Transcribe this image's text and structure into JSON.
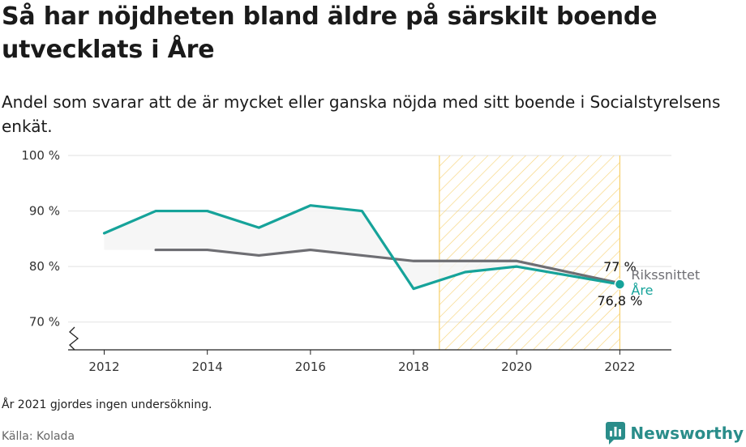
{
  "title": "Så har nöjdheten bland äldre på särskilt boende utvecklats i Åre",
  "subtitle": "Andel som svarar att de är mycket eller ganska nöjda med sitt boende i Socialstyrelsens enkät.",
  "footnote": "År 2021 gjordes ingen undersökning.",
  "source": "Källa: Kolada",
  "brand": {
    "name": "Newsworthy",
    "icon": "bar-chart-bubble-icon",
    "color": "#2a8d8a"
  },
  "chart_data": {
    "type": "line",
    "ylim": [
      65,
      100
    ],
    "xlim": [
      2011.3,
      2023.0
    ],
    "y_ticks": [
      {
        "value": 70,
        "label": "70 %"
      },
      {
        "value": 80,
        "label": "80 %"
      },
      {
        "value": 90,
        "label": "90 %"
      },
      {
        "value": 100,
        "label": "100 %"
      }
    ],
    "x_ticks": [
      {
        "value": 2012,
        "label": "2012"
      },
      {
        "value": 2014,
        "label": "2014"
      },
      {
        "value": 2016,
        "label": "2016"
      },
      {
        "value": 2018,
        "label": "2018"
      },
      {
        "value": 2020,
        "label": "2020"
      },
      {
        "value": 2022,
        "label": "2022"
      }
    ],
    "grid": true,
    "axis_break": true,
    "highlight_range": {
      "from": 2018.5,
      "to": 2022,
      "pattern": "diagonal-hatch",
      "color": "#f6cf6a"
    },
    "series": [
      {
        "name": "Åre",
        "color": "#16a39a",
        "x": [
          2012,
          2013,
          2014,
          2015,
          2016,
          2017,
          2018,
          2019,
          2020,
          2022
        ],
        "y": [
          86,
          90,
          90,
          87,
          91,
          90,
          76,
          79,
          80,
          76.8
        ],
        "end_value_label": "76,8 %"
      },
      {
        "name": "Rikssnittet",
        "color": "#6e6e73",
        "x": [
          2013,
          2014,
          2015,
          2016,
          2017,
          2018,
          2019,
          2020,
          2022
        ],
        "y": [
          83,
          83,
          82,
          83,
          82,
          81,
          81,
          81,
          77
        ],
        "end_value_label": "77 %"
      }
    ]
  }
}
